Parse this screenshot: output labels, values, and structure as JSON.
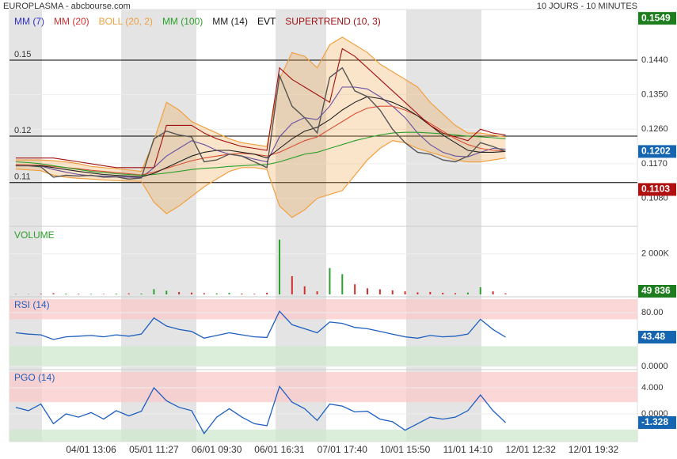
{
  "header": {
    "title": "EUROPLASMA - abcbourse.com",
    "period": "10 JOURS - 10 MINUTES"
  },
  "chart_data": [
    {
      "type": "line",
      "panel": "price",
      "events_label": "EVT",
      "categories": [
        null,
        null,
        null,
        null,
        null,
        null,
        "04/01 13:06",
        null,
        null,
        null,
        null,
        "05/01 11:27",
        null,
        null,
        null,
        null,
        "06/01 09:30",
        null,
        null,
        null,
        null,
        "06/01 16:31",
        null,
        null,
        null,
        null,
        "07/01 17:40",
        null,
        null,
        null,
        null,
        "10/01 15:50",
        null,
        null,
        null,
        null,
        "11/01 14:10",
        null,
        null,
        null,
        null,
        "12/01 12:32",
        null,
        null,
        null,
        null,
        "12/01 19:32",
        null,
        null,
        null
      ],
      "ylim": [
        0.1009,
        0.1572
      ],
      "yticks": [
        {
          "value": 0.144,
          "label": "0.1440"
        },
        {
          "value": 0.135,
          "label": "0.1350"
        },
        {
          "value": 0.126,
          "label": "0.1260"
        },
        {
          "value": 0.117,
          "label": "0.1170"
        },
        {
          "value": 0.108,
          "label": "0.1080"
        }
      ],
      "levels": [
        {
          "value": 0.144,
          "label": "0.15"
        },
        {
          "value": 0.1242,
          "label": "0.12"
        },
        {
          "value": 0.1121,
          "label": "0.11"
        }
      ],
      "tags": [
        {
          "value": 0.1549,
          "color": "#1e7d1e"
        },
        {
          "value": 0.1202,
          "color": "#1565b0"
        },
        {
          "value": 0.1103,
          "color": "#b01010"
        }
      ],
      "series": [
        {
          "name": "MM (7)",
          "color": "#3030c8",
          "values": [
            0.1165,
            0.1165,
            0.1164,
            0.1155,
            0.1148,
            0.1142,
            0.1139,
            0.1138,
            0.1137,
            0.1135,
            0.1134,
            0.116,
            0.119,
            0.121,
            0.123,
            0.122,
            0.1205,
            0.1195,
            0.119,
            0.1182,
            0.1175,
            0.124,
            0.1275,
            0.129,
            0.1285,
            0.132,
            0.137,
            0.137,
            0.1365,
            0.1345,
            0.132,
            0.129,
            0.125,
            0.122,
            0.12,
            0.119,
            0.1188,
            0.12,
            0.121,
            0.1208,
            null,
            null,
            null,
            null,
            null,
            null,
            null,
            null,
            null,
            null
          ]
        },
        {
          "name": "MM (20)",
          "color": "#d03030",
          "values": [
            0.1168,
            0.1167,
            0.1166,
            0.1163,
            0.116,
            0.1157,
            0.1153,
            0.115,
            0.1147,
            0.1144,
            0.1141,
            0.1148,
            0.1158,
            0.1168,
            0.1178,
            0.1185,
            0.119,
            0.1195,
            0.1197,
            0.1195,
            0.119,
            0.12,
            0.1215,
            0.123,
            0.124,
            0.126,
            0.128,
            0.13,
            0.1315,
            0.132,
            0.132,
            0.131,
            0.1295,
            0.1275,
            0.1255,
            0.1235,
            0.122,
            0.121,
            0.1205,
            0.1203,
            null,
            null,
            null,
            null,
            null,
            null,
            null,
            null,
            null,
            null
          ]
        },
        {
          "name": "BOLL (20, 2)",
          "color": "#f0a040",
          "band": true,
          "upper": [
            0.118,
            0.118,
            0.118,
            0.1178,
            0.1175,
            0.117,
            0.1163,
            0.116,
            0.1157,
            0.1154,
            0.115,
            0.123,
            0.133,
            0.131,
            0.128,
            0.1265,
            0.125,
            0.1235,
            0.1225,
            0.122,
            0.1215,
            0.139,
            0.146,
            0.145,
            0.142,
            0.148,
            0.15,
            0.148,
            0.146,
            0.143,
            0.141,
            0.139,
            0.137,
            0.133,
            0.13,
            0.127,
            0.125,
            0.125,
            0.1245,
            0.124,
            null,
            null,
            null,
            null,
            null,
            null,
            null,
            null,
            null,
            null
          ],
          "lower": [
            0.1156,
            0.1154,
            0.1152,
            0.114,
            0.1135,
            0.1132,
            0.113,
            0.1128,
            0.1126,
            0.1125,
            0.1124,
            0.107,
            0.104,
            0.106,
            0.1085,
            0.111,
            0.113,
            0.115,
            0.116,
            0.116,
            0.1155,
            0.106,
            0.103,
            0.105,
            0.108,
            0.109,
            0.11,
            0.114,
            0.118,
            0.121,
            0.123,
            0.1225,
            0.121,
            0.12,
            0.119,
            0.118,
            0.1175,
            0.1175,
            0.118,
            0.1185,
            null,
            null,
            null,
            null,
            null,
            null,
            null,
            null,
            null,
            null
          ]
        },
        {
          "name": "MM (100)",
          "color": "#2ca02c",
          "values": [
            0.1175,
            0.1173,
            0.117,
            0.1165,
            0.116,
            0.1155,
            0.115,
            0.1147,
            0.1144,
            0.1142,
            0.114,
            0.1142,
            0.1146,
            0.115,
            0.1155,
            0.1158,
            0.116,
            0.1163,
            0.1165,
            0.1167,
            0.1168,
            0.1175,
            0.1185,
            0.1195,
            0.12,
            0.121,
            0.122,
            0.123,
            0.1238,
            0.1245,
            0.125,
            0.1252,
            0.1252,
            0.125,
            0.1248,
            0.1245,
            0.1242,
            0.124,
            0.1238,
            0.1235,
            null,
            null,
            null,
            null,
            null,
            null,
            null,
            null,
            null,
            null
          ]
        },
        {
          "name": "MM (14)",
          "color": "#222222",
          "values": [
            0.1165,
            0.1165,
            0.1165,
            0.116,
            0.1155,
            0.115,
            0.1146,
            0.1142,
            0.114,
            0.1138,
            0.1136,
            0.1145,
            0.116,
            0.1175,
            0.119,
            0.12,
            0.1205,
            0.1205,
            0.12,
            0.1195,
            0.1185,
            0.121,
            0.1235,
            0.1255,
            0.1265,
            0.1285,
            0.131,
            0.133,
            0.1345,
            0.134,
            0.133,
            0.1315,
            0.1295,
            0.127,
            0.1245,
            0.1225,
            0.1205,
            0.12,
            0.12,
            0.1202,
            null,
            null,
            null,
            null,
            null,
            null,
            null,
            null,
            null,
            null
          ]
        },
        {
          "name": "SUPERTREND (10, 3)",
          "color": "#a01010",
          "values": [
            0.1185,
            0.1185,
            0.1185,
            0.1185,
            0.118,
            0.1175,
            0.117,
            0.1165,
            0.116,
            0.116,
            0.116,
            0.116,
            0.127,
            0.127,
            0.127,
            0.125,
            0.1235,
            0.1225,
            0.1215,
            0.121,
            0.1205,
            0.142,
            0.139,
            0.137,
            0.135,
            0.133,
            0.147,
            0.145,
            0.142,
            0.139,
            0.136,
            0.133,
            0.13,
            0.127,
            0.125,
            0.124,
            0.123,
            0.126,
            0.125,
            0.1245,
            null,
            null,
            null,
            null,
            null,
            null,
            null,
            null,
            null,
            null
          ]
        },
        {
          "color": "#555555",
          "values": [
            0.1165,
            0.1165,
            0.1162,
            0.1135,
            0.114,
            0.1138,
            0.114,
            0.1135,
            0.1136,
            0.113,
            0.1133,
            0.1235,
            0.1255,
            0.1245,
            0.124,
            0.1175,
            0.118,
            0.1195,
            0.119,
            0.1175,
            0.116,
            0.14,
            0.132,
            0.129,
            0.125,
            0.1395,
            0.142,
            0.136,
            0.1345,
            0.131,
            0.126,
            0.1225,
            0.12,
            0.1195,
            0.118,
            0.1175,
            0.119,
            0.1225,
            0.1215,
            0.1202,
            null,
            null,
            null,
            null,
            null,
            null,
            null,
            null,
            null,
            null
          ]
        }
      ]
    },
    {
      "type": "bar",
      "panel": "volume",
      "title": "VOLUME",
      "ylim": [
        0,
        3200000
      ],
      "yticks": [
        {
          "value": 2000000,
          "label": "2 000K"
        }
      ],
      "tag": {
        "value": 49836,
        "label": "49 836",
        "color": "#1e7d1e"
      },
      "up_color": "#2ca02c",
      "down_color": "#d03030",
      "values": [
        20000,
        15000,
        30000,
        60000,
        40000,
        30000,
        25000,
        20000,
        35000,
        50000,
        40000,
        260000,
        180000,
        120000,
        90000,
        60000,
        50000,
        70000,
        40000,
        30000,
        80000,
        2700000,
        900000,
        400000,
        150000,
        1300000,
        1000000,
        500000,
        300000,
        250000,
        200000,
        150000,
        100000,
        120000,
        80000,
        60000,
        90000,
        350000,
        150000,
        49836,
        null,
        null,
        null,
        null,
        null,
        null,
        null,
        null,
        null,
        null
      ]
    },
    {
      "type": "line",
      "panel": "rsi",
      "title": "RSI (14)",
      "ylim": [
        0,
        100
      ],
      "yticks": [
        {
          "value": 80,
          "label": "80.00"
        },
        {
          "value": 0,
          "label": "0.0000"
        }
      ],
      "zones": [
        [
          70,
          100
        ],
        [
          0,
          30
        ]
      ],
      "color": "#1f5fbf",
      "tag": {
        "value": 43.48,
        "color": "#1565b0"
      },
      "values": [
        50,
        48,
        47,
        40,
        44,
        45,
        46,
        44,
        47,
        45,
        48,
        72,
        60,
        55,
        52,
        42,
        46,
        50,
        47,
        44,
        43,
        82,
        62,
        56,
        50,
        66,
        64,
        58,
        56,
        52,
        48,
        44,
        42,
        46,
        44,
        45,
        48,
        70,
        55,
        43.48,
        null,
        null,
        null,
        null,
        null,
        null,
        null,
        null,
        null,
        null
      ]
    },
    {
      "type": "line",
      "panel": "pgo",
      "title": "PGO (14)",
      "ylim": [
        -4.24,
        6.42
      ],
      "yticks": [
        {
          "value": 4,
          "label": "4.000"
        },
        {
          "value": 0,
          "label": "0.0000"
        }
      ],
      "zones": [
        [
          1.8,
          6.42
        ],
        [
          -4.24,
          -2.4
        ]
      ],
      "color": "#1f5fbf",
      "tag": {
        "value": -1.328,
        "color": "#1565b0"
      },
      "values": [
        1,
        0.5,
        1.5,
        -1.5,
        0,
        -0.5,
        0.2,
        -0.8,
        0.5,
        -0.3,
        0.4,
        4,
        2,
        1,
        0.5,
        -3,
        -0.5,
        0.8,
        -0.5,
        -1.5,
        -1.8,
        4.2,
        1.8,
        0.8,
        -1,
        1.5,
        1.2,
        0.3,
        0.4,
        -0.8,
        -1.2,
        -2.5,
        -1.5,
        -0.5,
        -0.8,
        -0.5,
        0.5,
        2.9,
        0.5,
        -1.328,
        null,
        null,
        null,
        null,
        null,
        null,
        null,
        null,
        null,
        null
      ]
    }
  ]
}
